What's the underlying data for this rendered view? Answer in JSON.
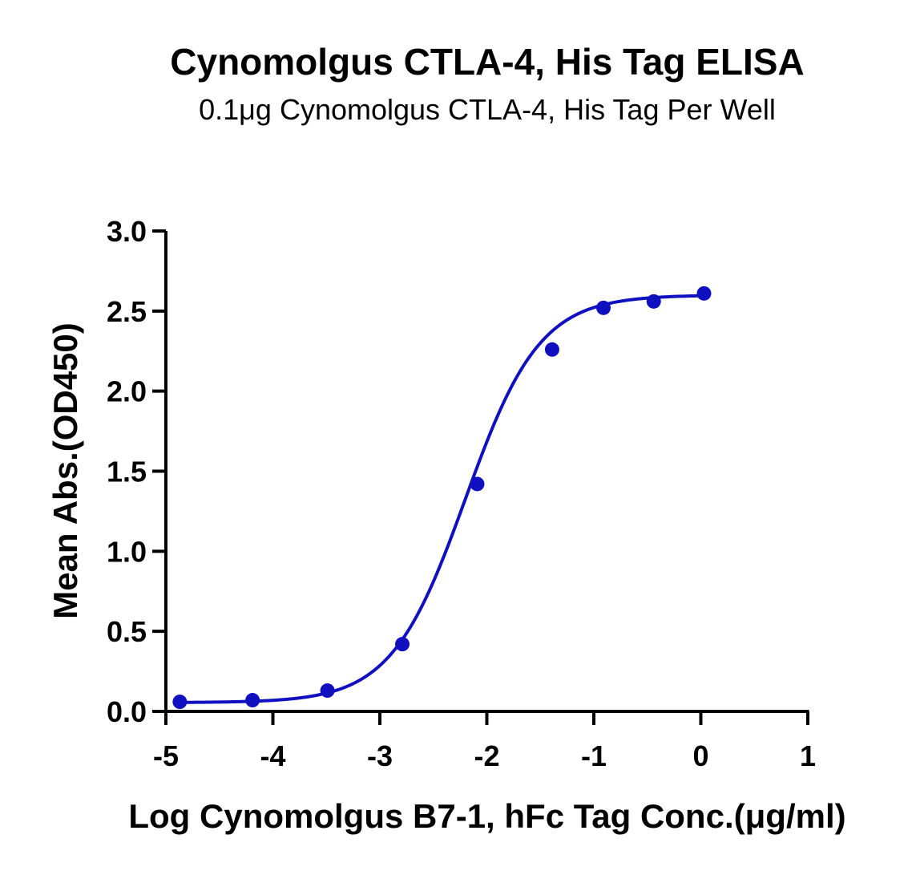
{
  "chart_data": {
    "type": "scatter",
    "title": "Cynomolgus CTLA-4, His Tag ELISA",
    "subtitle": "0.1μg Cynomolgus CTLA-4, His Tag Per Well",
    "xlabel": "Log Cynomolgus B7-1, hFc Tag Conc.(μg/ml)",
    "ylabel": "Mean Abs.(OD450)",
    "xlim": [
      -5,
      1
    ],
    "ylim": [
      0,
      3.0
    ],
    "xticks": [
      "-5",
      "-4",
      "-3",
      "-2",
      "-1",
      "0",
      "1"
    ],
    "yticks": [
      "0.0",
      "0.5",
      "1.0",
      "1.5",
      "2.0",
      "2.5",
      "3.0"
    ],
    "grid": false,
    "colors": {
      "series": "#1010c0",
      "axis": "#000000"
    },
    "series": [
      {
        "x": [
          -4.87,
          -4.19,
          -3.49,
          -2.79,
          -2.09,
          -1.39,
          -0.91,
          -0.44,
          0.03
        ],
        "y": [
          0.06,
          0.07,
          0.13,
          0.42,
          1.42,
          2.26,
          2.52,
          2.56,
          2.61
        ],
        "fit": {
          "model": "4PL",
          "bottom": 0.055,
          "top": 2.6,
          "logEC50": -2.2,
          "hill": 1.25
        }
      }
    ]
  }
}
